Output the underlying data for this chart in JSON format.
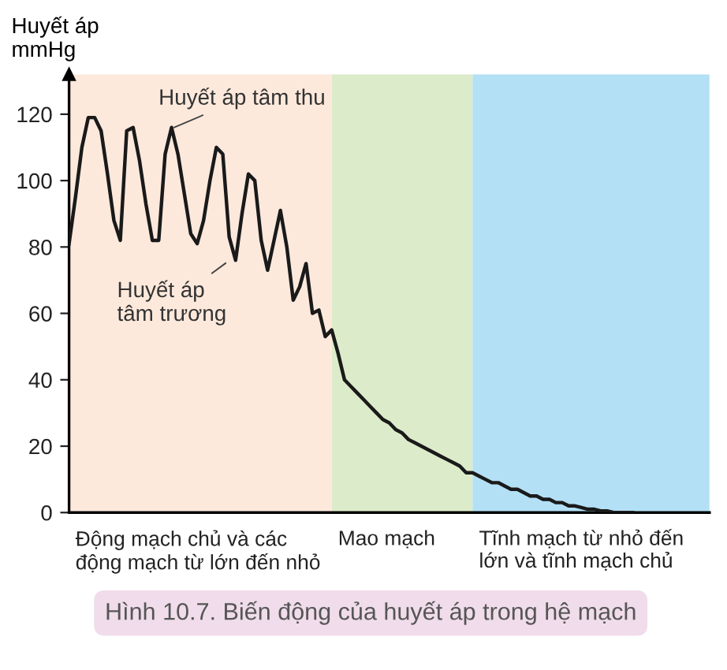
{
  "chart_data": {
    "type": "line",
    "ylabel": "Huyết áp\nmmHg",
    "categories": [
      null,
      null,
      null,
      null,
      null,
      null,
      null,
      null,
      null,
      null,
      null,
      null,
      null,
      null,
      null,
      null,
      null,
      null,
      null,
      null,
      null,
      null,
      null,
      null,
      null,
      null,
      null,
      null,
      null,
      null,
      null,
      null,
      null,
      null,
      null,
      null,
      null,
      null,
      null,
      null,
      null,
      null,
      null,
      null,
      null,
      null,
      null,
      null,
      null,
      null,
      null,
      null,
      null,
      null,
      null,
      null,
      null,
      null,
      null,
      null,
      null,
      null,
      null,
      null,
      null,
      null,
      null,
      null,
      null,
      null,
      null,
      null,
      null,
      null,
      null,
      null,
      null,
      null,
      null,
      null,
      null,
      null,
      null,
      null,
      null,
      null,
      null,
      null,
      null,
      null,
      null,
      null,
      null,
      null,
      null,
      null,
      null,
      null,
      null,
      null,
      null
    ],
    "series": [
      {
        "color": "#1a1a1a",
        "values": [
          81,
          95,
          110,
          119,
          119,
          115,
          102,
          88,
          82,
          115,
          116,
          106,
          93,
          82,
          82,
          108,
          116,
          108,
          96,
          84,
          81,
          88,
          100,
          110,
          108,
          83,
          76,
          90,
          102,
          100,
          82,
          73,
          82,
          91,
          80,
          64,
          68,
          75,
          60,
          61,
          53,
          55,
          48,
          40,
          38,
          36,
          34,
          32,
          30,
          28,
          27,
          25,
          24,
          22,
          21,
          20,
          19,
          18,
          17,
          16,
          15,
          14,
          12,
          12,
          11,
          10,
          9,
          9,
          8,
          7,
          7,
          6,
          5,
          5,
          4,
          4,
          3,
          3,
          2,
          2,
          1.5,
          1,
          1,
          0.5,
          0.5,
          0,
          0,
          0,
          0,
          null,
          null,
          null,
          null,
          null,
          null,
          null,
          null,
          null,
          null,
          null,
          null
        ]
      }
    ],
    "ylim": [
      0,
      132
    ],
    "yticks": [
      0,
      20,
      40,
      60,
      80,
      100,
      120
    ],
    "tick_labels": "y",
    "grid": false,
    "legend": false,
    "marker": "none",
    "line_style": "solid",
    "annotations": [
      "Huyết áp tâm thu",
      "Huyết áp\ntâm trương",
      "Động mạch chủ và các\nđộng mạch từ lớn đến nhỏ",
      "Mao mạch",
      "Tĩnh mạch từ nhỏ đến\nlớn và tĩnh mạch chủ",
      "Hình 10.7. Biến động của huyết áp trong hệ mạch"
    ]
  }
}
